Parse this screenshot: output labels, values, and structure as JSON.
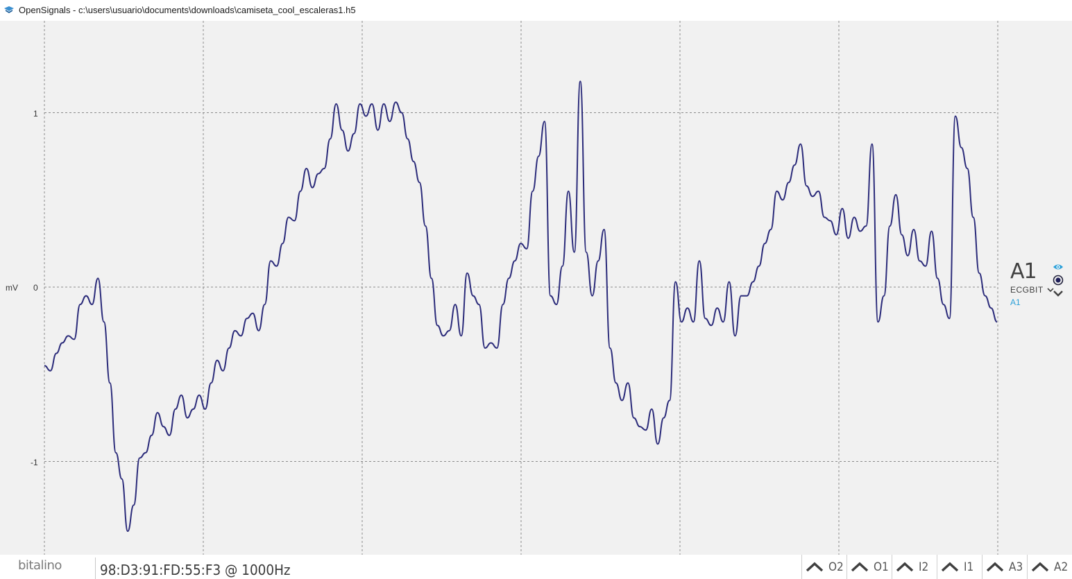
{
  "window": {
    "title": "OpenSignals - c:\\users\\usuario\\documents\\downloads\\camiseta_cool_escaleras1.h5",
    "icon": "opensignals-app-icon"
  },
  "plot": {
    "unit_label": "mV",
    "y_ticks": [
      "1",
      "0",
      "-1"
    ],
    "line_color": "#2b2b7a",
    "grid_color": "#8a8a8a",
    "background": "#f1f1f1"
  },
  "channel": {
    "name": "A1",
    "sensor": "ECGBIT",
    "port": "A1",
    "icons": [
      "eye-icon",
      "record-icon",
      "chevron-down-icon",
      "sensor-dropdown-chevron-icon"
    ],
    "accent": "#2a9fd8"
  },
  "chart_data": {
    "type": "line",
    "title": "",
    "ylabel": "mV",
    "xlabel": "",
    "ylim": [
      -1.4,
      1.5
    ],
    "grid": true,
    "series": [
      {
        "values": [
          -0.45,
          -0.48,
          -0.38,
          -0.32,
          -0.28,
          -0.3,
          -0.1,
          -0.05,
          -0.1,
          0.05,
          -0.2,
          -0.55,
          -0.95,
          -1.1,
          -1.4,
          -1.25,
          -0.98,
          -0.95,
          -0.85,
          -0.72,
          -0.8,
          -0.85,
          -0.7,
          -0.62,
          -0.75,
          -0.7,
          -0.62,
          -0.7,
          -0.55,
          -0.42,
          -0.48,
          -0.35,
          -0.25,
          -0.28,
          -0.18,
          -0.15,
          -0.25,
          -0.1,
          0.15,
          0.12,
          0.25,
          0.4,
          0.38,
          0.55,
          0.68,
          0.57,
          0.65,
          0.68,
          0.85,
          1.05,
          0.9,
          0.78,
          0.88,
          1.05,
          0.98,
          1.05,
          0.9,
          1.05,
          0.95,
          1.06,
          1.0,
          0.85,
          0.72,
          0.6,
          0.35,
          0.05,
          -0.22,
          -0.28,
          -0.25,
          -0.1,
          -0.28,
          0.08,
          -0.05,
          -0.1,
          -0.35,
          -0.32,
          -0.35,
          -0.1,
          0.05,
          0.15,
          0.25,
          0.22,
          0.55,
          0.75,
          0.95,
          -0.05,
          -0.1,
          0.12,
          0.55,
          0.2,
          1.18,
          0.2,
          -0.05,
          0.15,
          0.33,
          -0.35,
          -0.55,
          -0.65,
          -0.55,
          -0.75,
          -0.8,
          -0.82,
          -0.7,
          -0.9,
          -0.75,
          -0.65,
          0.03,
          -0.2,
          -0.12,
          -0.2,
          0.15,
          -0.18,
          -0.22,
          -0.12,
          -0.2,
          0.03,
          -0.28,
          -0.05,
          -0.05,
          0.03,
          0.12,
          0.25,
          0.33,
          0.55,
          0.5,
          0.6,
          0.7,
          0.82,
          0.58,
          0.52,
          0.55,
          0.4,
          0.38,
          0.3,
          0.45,
          0.28,
          0.4,
          0.32,
          0.35,
          0.82,
          -0.2,
          -0.05,
          0.35,
          0.53,
          0.3,
          0.18,
          0.33,
          0.15,
          0.12,
          0.32,
          0.05,
          -0.1,
          -0.18,
          0.98,
          0.8,
          0.68,
          0.4,
          0.08,
          -0.05,
          -0.12,
          -0.2
        ],
        "color": "#2b2b7a"
      }
    ]
  },
  "device": {
    "logo_text": "bitalino",
    "info": "98:D3:91:FD:55:F3 @ 1000Hz"
  },
  "channel_tabs": [
    {
      "label": "O2",
      "icon": "chevron-up-icon"
    },
    {
      "label": "O1",
      "icon": "chevron-up-icon"
    },
    {
      "label": "I2",
      "icon": "chevron-up-icon"
    },
    {
      "label": "I1",
      "icon": "chevron-up-icon"
    },
    {
      "label": "A3",
      "icon": "chevron-up-icon"
    },
    {
      "label": "A2",
      "icon": "chevron-up-icon"
    }
  ]
}
